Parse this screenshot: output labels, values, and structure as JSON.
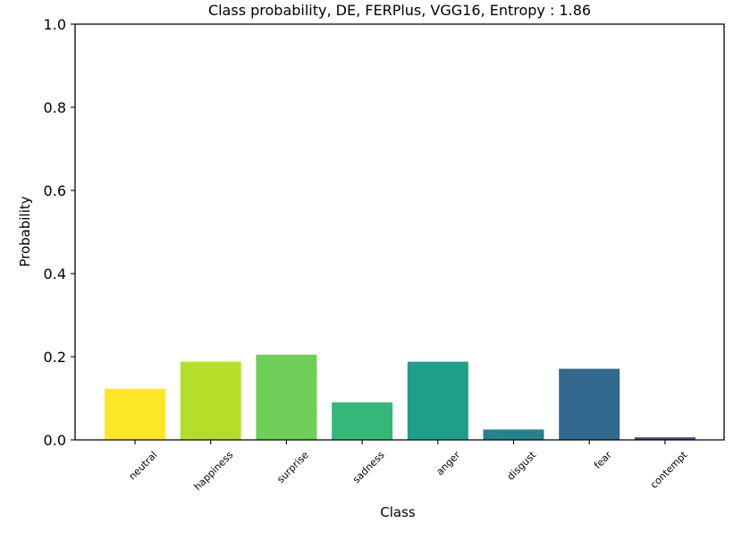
{
  "chart_data": {
    "type": "bar",
    "title": "Class probability, DE, FERPlus, VGG16, Entropy : 1.86",
    "xlabel": "Class",
    "ylabel": "Probability",
    "ylim": [
      0,
      1.0
    ],
    "yticks": [
      "0.0",
      "0.2",
      "0.4",
      "0.6",
      "0.8",
      "1.0"
    ],
    "yticks_values": [
      0,
      0.2,
      0.4,
      0.6,
      0.8,
      1.0
    ],
    "categories": [
      "neutral",
      "happiness",
      "surprise",
      "sadness",
      "anger",
      "disgust",
      "fear",
      "contempt"
    ],
    "values": [
      0.123,
      0.188,
      0.205,
      0.09,
      0.188,
      0.025,
      0.171,
      0.006
    ],
    "colors": [
      "#fde725",
      "#b5de2b",
      "#6ece58",
      "#35b779",
      "#1f9e89",
      "#26828e",
      "#31688e",
      "#3e4989"
    ],
    "grid": false,
    "legend": false
  }
}
